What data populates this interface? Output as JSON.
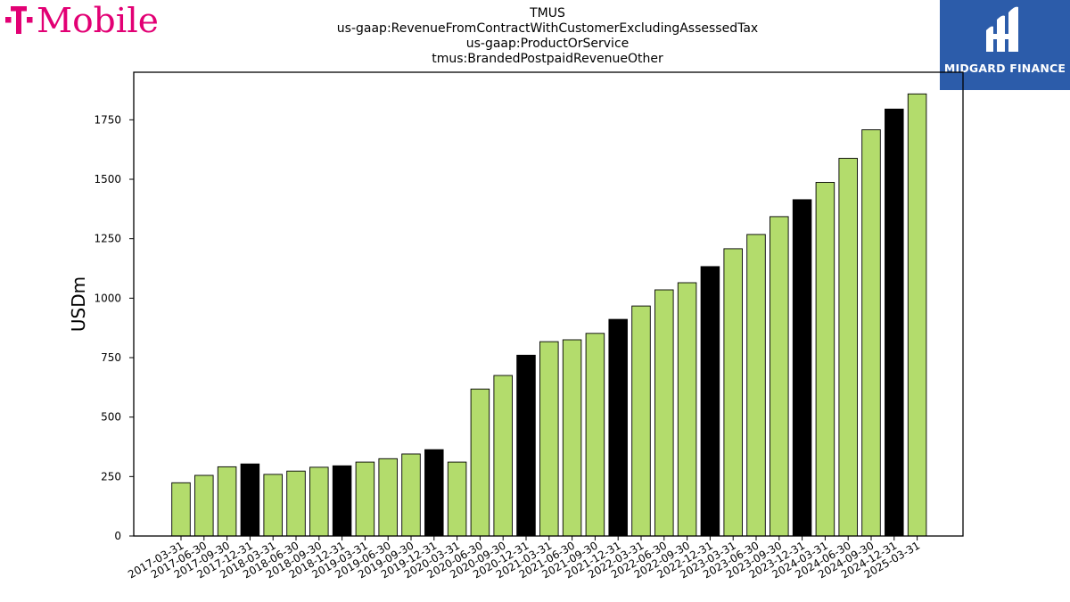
{
  "brand": {
    "logo_text": "T Mobile",
    "logo_color": "#e20074"
  },
  "title_lines": [
    "TMUS",
    "us-gaap:RevenueFromContractWithCustomerExcludingAssessedTax",
    "us-gaap:ProductOrService",
    "tmus:BrandedPostpaidRevenueOther"
  ],
  "badge": {
    "text": "MIDGARD FINANCE",
    "bg_color": "#2c5caa"
  },
  "chart_data": {
    "type": "bar",
    "title": "TMUS\nus-gaap:RevenueFromContractWithCustomerExcludingAssessedTax\nus-gaap:ProductOrService\ntmus:BrandedPostpaidRevenueOther",
    "xlabel": "",
    "ylabel": "USDm",
    "ylim": [
      0,
      1950
    ],
    "yticks": [
      0,
      250,
      500,
      750,
      1000,
      1250,
      1500,
      1750
    ],
    "grid": false,
    "colors": {
      "quarter": "#b3dc6c",
      "year_end": "#000000",
      "edge": "#000000"
    },
    "categories": [
      "2017-03-31",
      "2017-06-30",
      "2017-09-30",
      "2017-12-31",
      "2018-03-31",
      "2018-06-30",
      "2018-09-30",
      "2018-12-31",
      "2019-03-31",
      "2019-06-30",
      "2019-09-30",
      "2019-12-31",
      "2020-03-31",
      "2020-06-30",
      "2020-09-30",
      "2020-12-31",
      "2021-03-31",
      "2021-06-30",
      "2021-09-30",
      "2021-12-31",
      "2022-03-31",
      "2022-06-30",
      "2022-09-30",
      "2022-12-31",
      "2023-03-31",
      "2023-06-30",
      "2023-09-30",
      "2023-12-31",
      "2024-03-31",
      "2024-06-30",
      "2024-09-30",
      "2024-12-31",
      "2025-03-31"
    ],
    "values": [
      224,
      255,
      291,
      303,
      259,
      273,
      289,
      295,
      311,
      325,
      345,
      363,
      311,
      618,
      675,
      760,
      817,
      825,
      852,
      911,
      967,
      1035,
      1065,
      1133,
      1208,
      1268,
      1343,
      1414,
      1487,
      1588,
      1708,
      1795,
      1859
    ]
  }
}
